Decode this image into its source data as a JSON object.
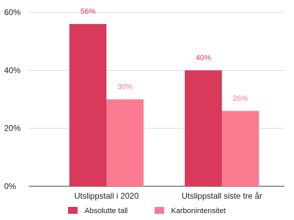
{
  "chart_data": {
    "type": "bar",
    "categories": [
      "Utslippstall i 2020",
      "Utslippstall siste tre år"
    ],
    "series": [
      {
        "name": "Absolutte tall",
        "values": [
          56,
          40
        ],
        "labels": [
          "56%",
          "40%"
        ],
        "color": "#d93a5b"
      },
      {
        "name": "Karbonintensitet",
        "values": [
          30,
          26
        ],
        "labels": [
          "30%",
          "26%"
        ],
        "color": "#fb7b91"
      }
    ],
    "y_ticks": [
      0,
      20,
      40,
      60
    ],
    "y_tick_labels": [
      "0%",
      "20%",
      "40%",
      "60%"
    ],
    "ylim": [
      0,
      60
    ],
    "grid": true,
    "legend_position": "bottom",
    "title": "",
    "xlabel": "",
    "ylabel": ""
  },
  "colors": {
    "grid": "#d9d9d9",
    "axis": "#333333",
    "text": "#222222"
  }
}
